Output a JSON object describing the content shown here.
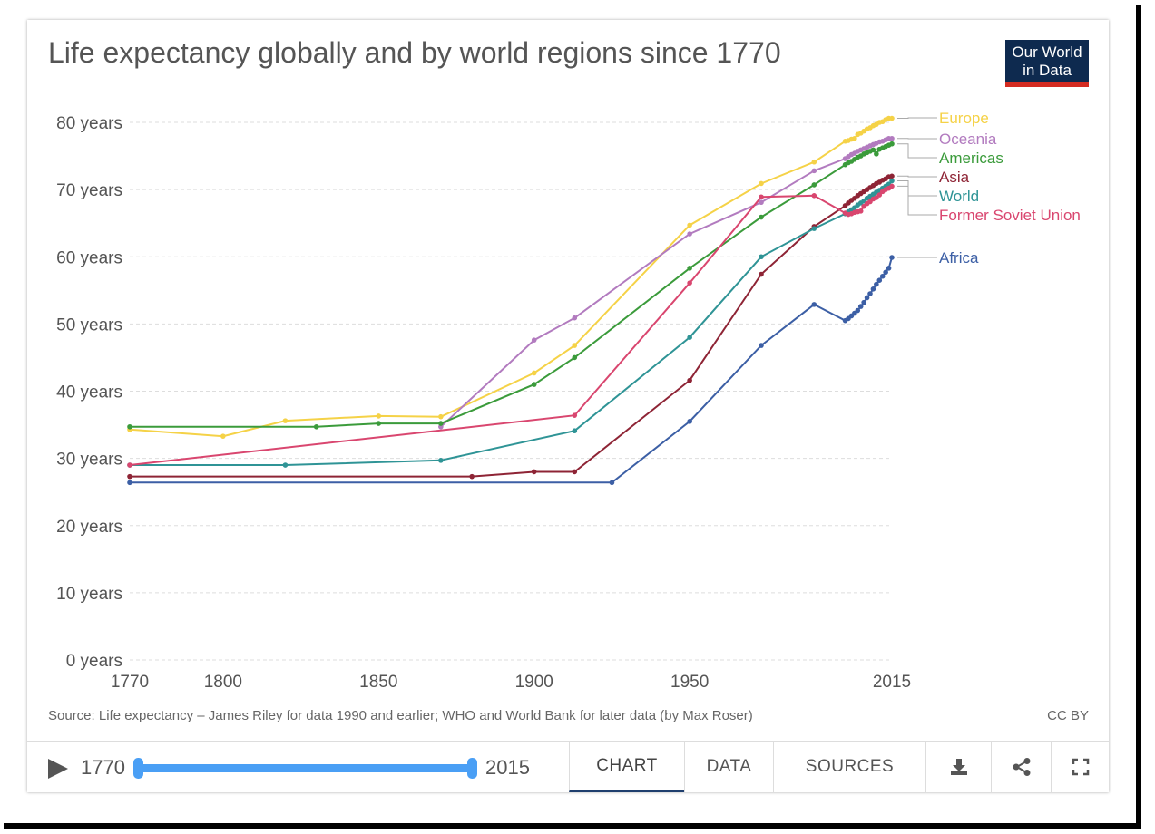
{
  "title": "Life expectancy globally and by world regions since 1770",
  "logo": {
    "line1": "Our World",
    "line2": "in Data"
  },
  "source": "Source: Life expectancy – James Riley for data 1990 and earlier; WHO and World Bank for later data (by Max Roser)",
  "license": "CC BY",
  "controls": {
    "start_year": "1770",
    "end_year": "2015",
    "tabs": [
      "CHART",
      "DATA",
      "SOURCES"
    ],
    "active_tab": "CHART",
    "icons": [
      "download-icon",
      "share-icon",
      "fullscreen-icon"
    ]
  },
  "chart_data": {
    "type": "line",
    "title": "Life expectancy globally and by world regions since 1770",
    "xlim": [
      1770,
      2015
    ],
    "ylim": [
      0,
      80
    ],
    "x_ticks": [
      "1770",
      "1800",
      "1850",
      "1900",
      "1950",
      "2015"
    ],
    "x_tick_values": [
      1770,
      1800,
      1850,
      1900,
      1950,
      2015
    ],
    "y_ticks": [
      "0 years",
      "10 years",
      "20 years",
      "30 years",
      "40 years",
      "50 years",
      "60 years",
      "70 years",
      "80 years"
    ],
    "y_tick_values": [
      0,
      10,
      20,
      30,
      40,
      50,
      60,
      70,
      80
    ],
    "grid": true,
    "legend": "right",
    "series": [
      {
        "name": "Europe",
        "color": "#f5d247",
        "points": [
          [
            1770,
            34.3
          ],
          [
            1800,
            33.3
          ],
          [
            1820,
            35.6
          ],
          [
            1850,
            36.3
          ],
          [
            1870,
            36.2
          ],
          [
            1900,
            42.7
          ],
          [
            1913,
            46.8
          ],
          [
            1950,
            64.7
          ],
          [
            1973,
            70.9
          ],
          [
            1990,
            74.1
          ],
          [
            2000,
            77.2
          ],
          [
            2001,
            77.3
          ],
          [
            2002,
            77.5
          ],
          [
            2003,
            77.6
          ],
          [
            2004,
            78.2
          ],
          [
            2005,
            78.4
          ],
          [
            2006,
            78.7
          ],
          [
            2007,
            79.0
          ],
          [
            2008,
            79.2
          ],
          [
            2009,
            79.5
          ],
          [
            2010,
            79.7
          ],
          [
            2011,
            80.0
          ],
          [
            2012,
            80.1
          ],
          [
            2013,
            80.4
          ],
          [
            2014,
            80.6
          ],
          [
            2015,
            80.6
          ]
        ]
      },
      {
        "name": "Oceania",
        "color": "#b27bbf",
        "points": [
          [
            1870,
            34.7
          ],
          [
            1900,
            47.6
          ],
          [
            1913,
            50.9
          ],
          [
            1950,
            63.4
          ],
          [
            1973,
            68.1
          ],
          [
            1990,
            72.8
          ],
          [
            2000,
            74.6
          ],
          [
            2001,
            74.9
          ],
          [
            2002,
            75.2
          ],
          [
            2003,
            75.4
          ],
          [
            2004,
            75.7
          ],
          [
            2005,
            75.9
          ],
          [
            2006,
            76.1
          ],
          [
            2007,
            76.3
          ],
          [
            2008,
            76.5
          ],
          [
            2009,
            76.7
          ],
          [
            2010,
            76.9
          ],
          [
            2011,
            77.1
          ],
          [
            2012,
            77.2
          ],
          [
            2013,
            77.4
          ],
          [
            2014,
            77.6
          ],
          [
            2015,
            77.6
          ]
        ]
      },
      {
        "name": "Americas",
        "color": "#3b9b3b",
        "points": [
          [
            1770,
            34.7
          ],
          [
            1830,
            34.7
          ],
          [
            1850,
            35.2
          ],
          [
            1870,
            35.2
          ],
          [
            1900,
            41.0
          ],
          [
            1913,
            45.0
          ],
          [
            1950,
            58.3
          ],
          [
            1973,
            65.9
          ],
          [
            1990,
            70.7
          ],
          [
            2000,
            73.7
          ],
          [
            2001,
            74.0
          ],
          [
            2002,
            74.2
          ],
          [
            2003,
            74.5
          ],
          [
            2004,
            74.8
          ],
          [
            2005,
            75.0
          ],
          [
            2006,
            75.3
          ],
          [
            2007,
            75.5
          ],
          [
            2008,
            75.7
          ],
          [
            2009,
            75.9
          ],
          [
            2010,
            75.3
          ],
          [
            2011,
            76.0
          ],
          [
            2012,
            76.2
          ],
          [
            2013,
            76.4
          ],
          [
            2014,
            76.6
          ],
          [
            2015,
            76.8
          ]
        ]
      },
      {
        "name": "Asia",
        "color": "#8e2435",
        "points": [
          [
            1770,
            27.3
          ],
          [
            1880,
            27.3
          ],
          [
            1900,
            28.0
          ],
          [
            1913,
            28.0
          ],
          [
            1950,
            41.6
          ],
          [
            1973,
            57.4
          ],
          [
            1990,
            64.5
          ],
          [
            2000,
            67.6
          ],
          [
            2001,
            68.0
          ],
          [
            2002,
            68.4
          ],
          [
            2003,
            68.7
          ],
          [
            2004,
            69.1
          ],
          [
            2005,
            69.4
          ],
          [
            2006,
            69.7
          ],
          [
            2007,
            70.0
          ],
          [
            2008,
            70.3
          ],
          [
            2009,
            70.6
          ],
          [
            2010,
            70.9
          ],
          [
            2011,
            71.1
          ],
          [
            2012,
            71.4
          ],
          [
            2013,
            71.6
          ],
          [
            2014,
            71.9
          ],
          [
            2015,
            72.0
          ]
        ]
      },
      {
        "name": "World",
        "color": "#2f9496",
        "points": [
          [
            1770,
            29.0
          ],
          [
            1820,
            29.0
          ],
          [
            1870,
            29.7
          ],
          [
            1913,
            34.1
          ],
          [
            1950,
            48.0
          ],
          [
            1973,
            60.0
          ],
          [
            1990,
            64.2
          ],
          [
            2000,
            66.4
          ],
          [
            2001,
            66.7
          ],
          [
            2002,
            67.0
          ],
          [
            2003,
            67.3
          ],
          [
            2004,
            67.7
          ],
          [
            2005,
            68.0
          ],
          [
            2006,
            68.3
          ],
          [
            2007,
            68.7
          ],
          [
            2008,
            69.0
          ],
          [
            2009,
            69.3
          ],
          [
            2010,
            69.6
          ],
          [
            2011,
            69.9
          ],
          [
            2012,
            70.2
          ],
          [
            2013,
            70.5
          ],
          [
            2014,
            70.8
          ],
          [
            2015,
            71.3
          ]
        ]
      },
      {
        "name": "Former Soviet Union",
        "color": "#d9466f",
        "points": [
          [
            1770,
            29.0
          ],
          [
            1913,
            36.4
          ],
          [
            1950,
            56.1
          ],
          [
            1973,
            68.9
          ],
          [
            1990,
            69.1
          ],
          [
            2000,
            66.5
          ],
          [
            2001,
            66.3
          ],
          [
            2002,
            66.4
          ],
          [
            2003,
            66.6
          ],
          [
            2004,
            66.7
          ],
          [
            2005,
            66.8
          ],
          [
            2006,
            67.5
          ],
          [
            2007,
            67.9
          ],
          [
            2008,
            68.2
          ],
          [
            2009,
            68.6
          ],
          [
            2010,
            68.8
          ],
          [
            2011,
            69.2
          ],
          [
            2012,
            69.7
          ],
          [
            2013,
            70.0
          ],
          [
            2014,
            70.2
          ],
          [
            2015,
            70.5
          ]
        ]
      },
      {
        "name": "Africa",
        "color": "#3c5fa5",
        "points": [
          [
            1770,
            26.4
          ],
          [
            1925,
            26.4
          ],
          [
            1950,
            35.5
          ],
          [
            1973,
            46.8
          ],
          [
            1990,
            52.9
          ],
          [
            2000,
            50.5
          ],
          [
            2001,
            50.8
          ],
          [
            2002,
            51.2
          ],
          [
            2003,
            51.6
          ],
          [
            2004,
            52.0
          ],
          [
            2005,
            52.6
          ],
          [
            2006,
            53.2
          ],
          [
            2007,
            53.9
          ],
          [
            2008,
            54.5
          ],
          [
            2009,
            55.2
          ],
          [
            2010,
            55.9
          ],
          [
            2011,
            56.5
          ],
          [
            2012,
            57.1
          ],
          [
            2013,
            57.7
          ],
          [
            2014,
            58.3
          ],
          [
            2015,
            59.9
          ]
        ]
      }
    ]
  }
}
